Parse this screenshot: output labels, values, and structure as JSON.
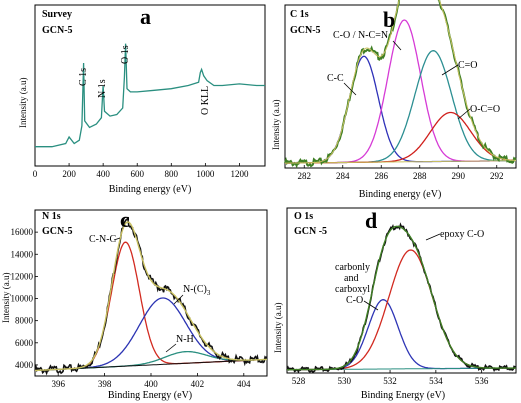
{
  "colors": {
    "frame": "#000000",
    "survey": "#2a8f80",
    "envelope_green": "#3f7f25",
    "raw_black": "#111111",
    "c1s_cc": "#2e31b8",
    "c1s_co": "#d63bd6",
    "c1s_ceo": "#2c8f92",
    "c1s_oco": "#d0201c",
    "n1s_cnc": "#d22a20",
    "n1s_nc3": "#2c34b3",
    "n1s_nh": "#2a8f80",
    "o1s_carb": "#2e35b5",
    "o1s_epoxy": "#d22a20",
    "o1s_base": "#2a8f80",
    "fit_envelope": "#c8c060"
  },
  "chart_data": [
    {
      "panel": "a",
      "type": "line",
      "header": [
        "Survey",
        "GCN-5"
      ],
      "xlabel": "Binding energy (eV)",
      "ylabel": "Intensity (a.u)",
      "xlim": [
        0,
        1350
      ],
      "xticks": [
        0,
        200,
        400,
        600,
        800,
        1000,
        1200
      ],
      "peak_labels": [
        {
          "text": "C 1s",
          "x": 285
        },
        {
          "text": "N 1s",
          "x": 400
        },
        {
          "text": "O 1s",
          "x": 532
        },
        {
          "text": "O KLL",
          "x": 978
        }
      ],
      "series": [
        {
          "x": [
            0,
            100,
            180,
            200,
            230,
            260,
            275,
            285,
            292,
            320,
            360,
            390,
            400,
            408,
            440,
            480,
            515,
            525,
            532,
            540,
            560,
            600,
            700,
            800,
            900,
            960,
            970,
            978,
            990,
            1010,
            1050,
            1100,
            1200,
            1300,
            1350
          ],
          "y": [
            0.12,
            0.12,
            0.14,
            0.18,
            0.14,
            0.16,
            0.25,
            0.64,
            0.28,
            0.24,
            0.26,
            0.3,
            0.5,
            0.34,
            0.31,
            0.32,
            0.36,
            0.55,
            0.76,
            0.48,
            0.46,
            0.46,
            0.47,
            0.48,
            0.5,
            0.52,
            0.58,
            0.6,
            0.56,
            0.53,
            0.5,
            0.5,
            0.51,
            0.5,
            0.5
          ]
        }
      ]
    },
    {
      "panel": "b",
      "type": "line",
      "header": [
        "C 1s",
        "GCN-5"
      ],
      "xlabel": "Binding energy (eV)",
      "ylabel": "Intensity (a.u)",
      "xlim": [
        281,
        293
      ],
      "xticks": [
        282,
        284,
        286,
        288,
        290,
        292
      ],
      "peaks": [
        {
          "label": "C-C",
          "center": 285.1,
          "height": 0.65,
          "width": 0.75
        },
        {
          "label": "C-O / N-C=N",
          "center": 287.2,
          "height": 0.87,
          "width": 0.85
        },
        {
          "label": "C=O",
          "center": 288.7,
          "height": 0.68,
          "width": 0.95
        },
        {
          "label": "O-C=O",
          "center": 289.6,
          "height": 0.3,
          "width": 1.05
        }
      ]
    },
    {
      "panel": "c",
      "type": "line",
      "header": [
        "N 1s",
        "GCN-5"
      ],
      "xlabel": "Binding Energy (eV)",
      "ylabel": "Intensity (a.u)",
      "xlim": [
        395,
        405
      ],
      "ylim": [
        3000,
        18000
      ],
      "xticks": [
        396,
        398,
        400,
        402,
        404
      ],
      "yticks": [
        4000,
        6000,
        8000,
        10000,
        12000,
        14000,
        16000
      ],
      "peaks": [
        {
          "label": "C-N-C",
          "center": 398.9,
          "height": 11200,
          "width": 0.6
        },
        {
          "label": "N-(C)3",
          "center": 400.5,
          "height": 6000,
          "width": 1.0
        },
        {
          "label": "N-H",
          "center": 401.5,
          "height": 1050,
          "width": 0.9
        }
      ]
    },
    {
      "panel": "d",
      "type": "line",
      "header": [
        "O 1s",
        "GCN -5"
      ],
      "xlabel": "Binding Energy (eV)",
      "ylabel": "Intensity (a.u)",
      "xlim": [
        527.5,
        537.5
      ],
      "xticks": [
        528,
        530,
        532,
        534,
        536
      ],
      "peaks": [
        {
          "label": "carbonly and carboxyl C-O",
          "center": 531.7,
          "height": 0.42,
          "width": 0.65
        },
        {
          "label": "epoxy C-O",
          "center": 532.9,
          "height": 0.72,
          "width": 0.95
        }
      ]
    }
  ],
  "labels": {
    "a": {
      "tag": "a",
      "header1": "Survey",
      "header2": "GCN-5",
      "xlabel": "Binding energy (eV)",
      "ylabel": "Intensity (a.u)",
      "p1": "C 1s",
      "p2": "N 1s",
      "p3": "O 1s",
      "p4": "O KLL"
    },
    "b": {
      "tag": "b",
      "header1": "C 1s",
      "header2": "GCN-5",
      "xlabel": "Binding energy (eV)",
      "ylabel": "Intensity (a.u)",
      "p1": "C-C",
      "p2": "C-O / N-C=N",
      "p3": "C=O",
      "p4": "O-C=O"
    },
    "c": {
      "tag": "c",
      "header1": "N 1s",
      "header2": "GCN-5",
      "xlabel": "Binding Energy (eV)",
      "ylabel": "Intensity (a.u)",
      "p1": "C-N-C",
      "p2_main": "N-(C)",
      "p2_sub": "3",
      "p3": "N-H"
    },
    "d": {
      "tag": "d",
      "header1": "O 1s",
      "header2": "GCN -5",
      "xlabel": "Binding Energy (eV)",
      "ylabel": "Intensity (a.u)",
      "p1a": "carbonly",
      "p1b": "and",
      "p1c": "carboxyl",
      "p1d": "C-O",
      "p2": "epoxy C-O"
    }
  }
}
